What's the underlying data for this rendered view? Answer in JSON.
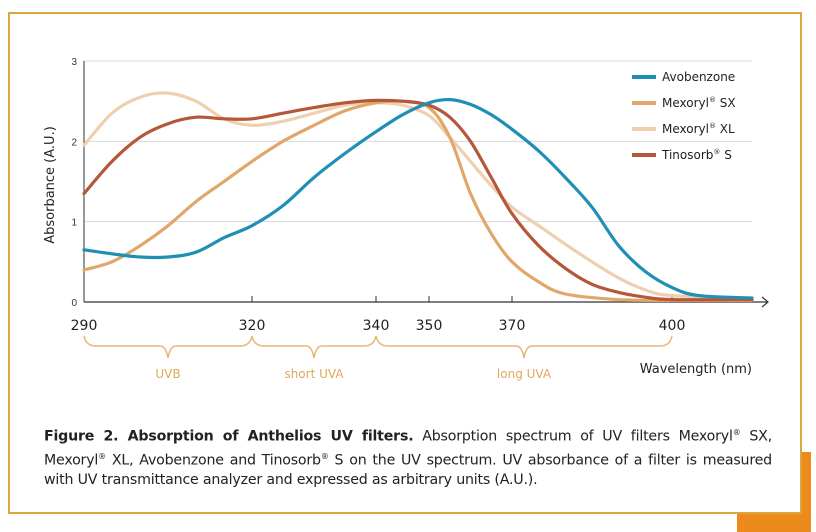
{
  "chart_data": {
    "type": "line",
    "title": "",
    "xlabel": "Wavelength (nm)",
    "ylabel": "Absorbance (A.U.)",
    "ylim": [
      0,
      3
    ],
    "xlim": [
      290,
      415
    ],
    "x_ticks": [
      290,
      320,
      340,
      350,
      370,
      400
    ],
    "y_ticks": [
      0,
      1,
      2,
      3
    ],
    "grid": "horizontal",
    "legend_position": "top-right",
    "series": [
      {
        "name": "Avobenzone",
        "color": "#1f8fb5",
        "points": [
          [
            290,
            0.65
          ],
          [
            295,
            0.6
          ],
          [
            300,
            0.56
          ],
          [
            305,
            0.56
          ],
          [
            310,
            0.62
          ],
          [
            315,
            0.8
          ],
          [
            320,
            0.95
          ],
          [
            325,
            1.2
          ],
          [
            330,
            1.55
          ],
          [
            335,
            1.85
          ],
          [
            340,
            2.12
          ],
          [
            345,
            2.33
          ],
          [
            350,
            2.48
          ],
          [
            355,
            2.52
          ],
          [
            360,
            2.46
          ],
          [
            365,
            2.33
          ],
          [
            370,
            2.15
          ],
          [
            375,
            1.88
          ],
          [
            380,
            1.55
          ],
          [
            385,
            1.18
          ],
          [
            390,
            0.7
          ],
          [
            395,
            0.38
          ],
          [
            400,
            0.18
          ],
          [
            405,
            0.08
          ],
          [
            415,
            0.05
          ]
        ]
      },
      {
        "name": "Mexoryl® SX",
        "color": "#e0a66a",
        "points": [
          [
            290,
            0.4
          ],
          [
            295,
            0.5
          ],
          [
            300,
            0.7
          ],
          [
            305,
            0.95
          ],
          [
            310,
            1.25
          ],
          [
            315,
            1.5
          ],
          [
            320,
            1.75
          ],
          [
            325,
            2.0
          ],
          [
            330,
            2.2
          ],
          [
            335,
            2.38
          ],
          [
            340,
            2.48
          ],
          [
            345,
            2.5
          ],
          [
            350,
            2.42
          ],
          [
            355,
            2.05
          ],
          [
            360,
            1.35
          ],
          [
            365,
            0.85
          ],
          [
            370,
            0.5
          ],
          [
            375,
            0.25
          ],
          [
            380,
            0.1
          ],
          [
            390,
            0.03
          ],
          [
            400,
            0.02
          ],
          [
            415,
            0.02
          ]
        ]
      },
      {
        "name": "Mexoryl® XL",
        "color": "#f0cfae",
        "points": [
          [
            290,
            1.95
          ],
          [
            295,
            2.35
          ],
          [
            300,
            2.55
          ],
          [
            305,
            2.6
          ],
          [
            310,
            2.5
          ],
          [
            315,
            2.28
          ],
          [
            320,
            2.2
          ],
          [
            325,
            2.25
          ],
          [
            330,
            2.35
          ],
          [
            335,
            2.45
          ],
          [
            340,
            2.48
          ],
          [
            345,
            2.45
          ],
          [
            350,
            2.32
          ],
          [
            355,
            2.05
          ],
          [
            360,
            1.75
          ],
          [
            365,
            1.45
          ],
          [
            370,
            1.18
          ],
          [
            375,
            0.95
          ],
          [
            380,
            0.72
          ],
          [
            385,
            0.5
          ],
          [
            390,
            0.3
          ],
          [
            395,
            0.15
          ],
          [
            400,
            0.08
          ],
          [
            415,
            0.05
          ]
        ]
      },
      {
        "name": "Tinosorb® S",
        "color": "#b5573a",
        "points": [
          [
            290,
            1.35
          ],
          [
            295,
            1.75
          ],
          [
            300,
            2.05
          ],
          [
            305,
            2.22
          ],
          [
            310,
            2.3
          ],
          [
            315,
            2.28
          ],
          [
            320,
            2.28
          ],
          [
            325,
            2.35
          ],
          [
            330,
            2.42
          ],
          [
            335,
            2.48
          ],
          [
            340,
            2.51
          ],
          [
            345,
            2.5
          ],
          [
            350,
            2.45
          ],
          [
            355,
            2.3
          ],
          [
            360,
            2.0
          ],
          [
            365,
            1.55
          ],
          [
            370,
            1.1
          ],
          [
            375,
            0.7
          ],
          [
            380,
            0.42
          ],
          [
            385,
            0.22
          ],
          [
            390,
            0.12
          ],
          [
            395,
            0.06
          ],
          [
            400,
            0.03
          ],
          [
            415,
            0.03
          ]
        ]
      }
    ],
    "annotations": [
      {
        "label": "UVB",
        "from": 290,
        "to": 320
      },
      {
        "label": "short UVA",
        "from": 320,
        "to": 340
      },
      {
        "label": "long  UVA",
        "from": 340,
        "to": 400
      }
    ]
  },
  "caption": {
    "bold": "Figure 2. Absorption of Anthelios UV filters.",
    "text_1": " Absorption spectrum of UV filters Mexoryl",
    "text_2": " SX, Mexoryl",
    "text_3": " XL, Avobenzone and Tinosorb",
    "text_4": " S on the UV spectrum. UV absorbance of a filter is measured with UV transmittance analyzer and expressed as arbitrary units (A.U.).",
    "reg": "®"
  },
  "colors": {
    "frame_border": "#d9a640",
    "orange_accent": "#ec8a1c",
    "bracket": "#e6b873",
    "bracket_label": "#e0a85a"
  }
}
